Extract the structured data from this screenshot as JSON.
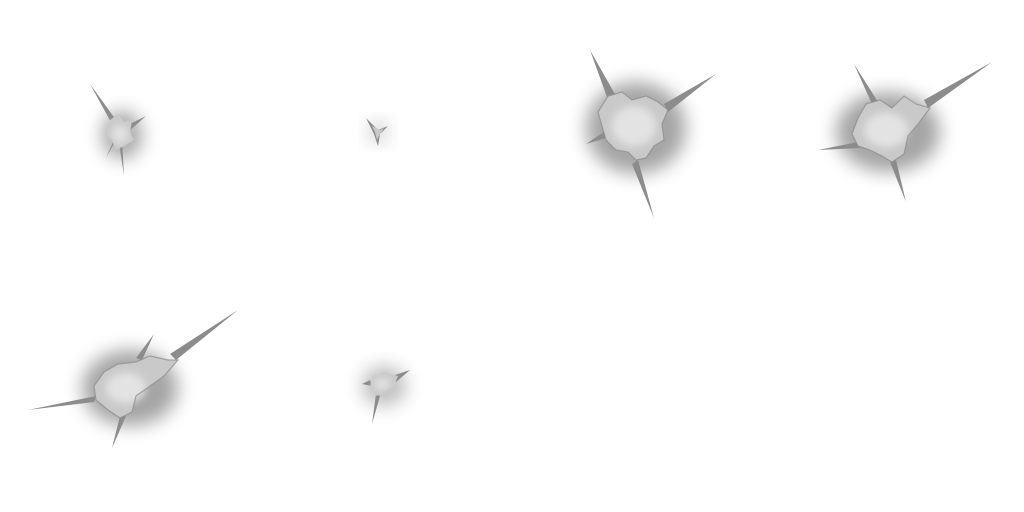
{
  "scene": {
    "background_color": "#ffffff",
    "hole_color": "#c9c9c9",
    "shadow_color": "#5a5a5a",
    "spike_color": "#8c8c8c",
    "elements": [
      {
        "name": "tear-hole-1",
        "kind": "small-tear"
      },
      {
        "name": "tear-hole-2",
        "kind": "tiny-tear"
      },
      {
        "name": "tear-hole-3",
        "kind": "large-tear"
      },
      {
        "name": "tear-hole-4",
        "kind": "large-tear"
      },
      {
        "name": "tear-hole-5",
        "kind": "medium-tear"
      },
      {
        "name": "tear-hole-6",
        "kind": "small-tear"
      }
    ]
  }
}
